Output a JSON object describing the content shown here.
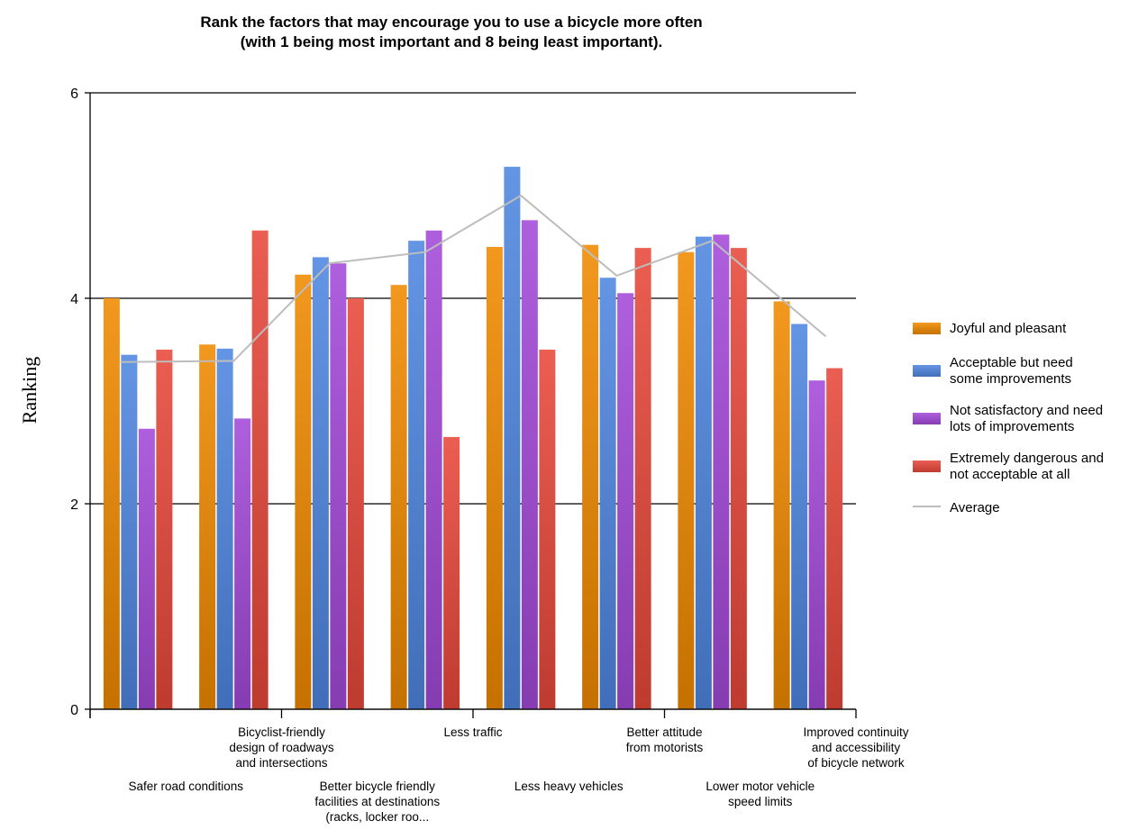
{
  "chart_data": {
    "type": "bar",
    "title_lines": [
      "Rank the factors that may encourage you to use a bicycle more often",
      "(with 1 being most important and 8 being least important)."
    ],
    "ylabel": "Ranking",
    "xlabel": "",
    "ylim": [
      0,
      6
    ],
    "yticks": [
      0,
      2,
      4,
      6
    ],
    "grid": true,
    "legend_position": "right",
    "categories": [
      "Safer road conditions",
      "Bicyclist-friendly design of roadways and intersections",
      "Better bicycle friendly facilities at destinations (racks, locker roo...",
      "Less traffic",
      "Less heavy vehicles",
      "Better attitude from motorists",
      "Lower motor vehicle speed limits",
      "Improved continuity and accessibility of bicycle network"
    ],
    "category_label_lines": [
      [
        "Safer road conditions"
      ],
      [
        "Bicyclist-friendly",
        "design of roadways",
        "and intersections"
      ],
      [
        "Better bicycle friendly",
        "facilities at destinations",
        "(racks, locker roo..."
      ],
      [
        "Less traffic"
      ],
      [
        "Less heavy vehicles"
      ],
      [
        "Better attitude",
        "from motorists"
      ],
      [
        "Lower motor vehicle",
        "speed limits"
      ],
      [
        "Improved continuity",
        "and accessibility",
        "of bicycle network"
      ]
    ],
    "series": [
      {
        "name": "Joyful and pleasant",
        "legend_lines": [
          "Joyful and pleasant"
        ],
        "color": "#f08a00",
        "values": [
          4.0,
          3.55,
          4.23,
          4.13,
          4.5,
          4.52,
          4.45,
          3.97
        ]
      },
      {
        "name": "Acceptable but need some improvements",
        "legend_lines": [
          "Acceptable but need",
          "some improvements"
        ],
        "color": "#4f86e0",
        "values": [
          3.45,
          3.51,
          4.4,
          4.56,
          5.28,
          4.2,
          4.6,
          3.75
        ]
      },
      {
        "name": "Not satisfactory and need lots of improvements",
        "legend_lines": [
          "Not satisfactory and need",
          "lots of improvements"
        ],
        "color": "#a349d8",
        "values": [
          2.73,
          2.83,
          4.34,
          4.66,
          4.76,
          4.05,
          4.62,
          3.2
        ]
      },
      {
        "name": "Extremely dangerous and not acceptable at all",
        "legend_lines": [
          "Extremely dangerous and",
          "not acceptable at all"
        ],
        "color": "#e8483a",
        "values": [
          3.5,
          4.66,
          4.0,
          2.65,
          3.5,
          4.49,
          4.49,
          3.32
        ]
      }
    ],
    "average": {
      "name": "Average",
      "color": "#bdbdbd",
      "values": [
        3.38,
        3.39,
        4.34,
        4.45,
        5.0,
        4.22,
        4.56,
        3.63
      ]
    }
  }
}
